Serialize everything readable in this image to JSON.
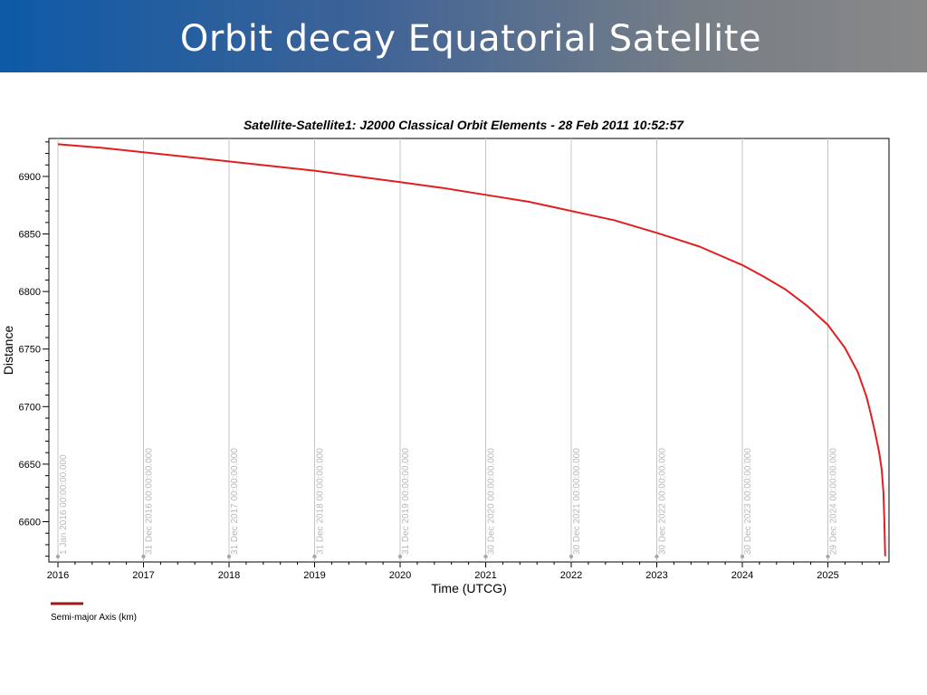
{
  "slide": {
    "title": "Orbit decay Equatorial Satellite",
    "banner_colors": [
      "#0d5aa7",
      "#888888"
    ]
  },
  "chart_data": {
    "type": "line",
    "title": "Satellite-Satellite1:  J2000 Classical Orbit Elements - 28 Feb 2011 10:52:57",
    "xlabel": "Time (UTCG)",
    "ylabel": "Distance",
    "xlim": [
      2016.0,
      2026.2
    ],
    "ylim": [
      6565,
      6933
    ],
    "x_ticks": [
      "2016",
      "2017",
      "2018",
      "2019",
      "2020",
      "2021",
      "2022",
      "2023",
      "2024",
      "2025"
    ],
    "y_ticks": [
      "6600",
      "6650",
      "6700",
      "6750",
      "6800",
      "6850",
      "6900"
    ],
    "y_tick_values": [
      6600,
      6650,
      6700,
      6750,
      6800,
      6850,
      6900
    ],
    "vertical_markers": [
      {
        "x": 2016.0,
        "label": "1 Jan 2016 00:00:00.000"
      },
      {
        "x": 2017.0,
        "label": "31 Dec 2016 00:00:00.000"
      },
      {
        "x": 2018.0,
        "label": "31 Dec 2017 00:00:00.000"
      },
      {
        "x": 2019.0,
        "label": "31 Dec 2018 00:00:00.000"
      },
      {
        "x": 2020.0,
        "label": "31 Dec 2019 00:00:00.000"
      },
      {
        "x": 2021.0,
        "label": "30 Dec 2020 00:00:00.000"
      },
      {
        "x": 2022.0,
        "label": "30 Dec 2021 00:00:00.000"
      },
      {
        "x": 2023.0,
        "label": "30 Dec 2022 00:00:00.000"
      },
      {
        "x": 2024.0,
        "label": "30 Dec 2023 00:00:00.000"
      },
      {
        "x": 2025.0,
        "label": "29 Dec 2024 00:00:00.000"
      }
    ],
    "grid": "vertical",
    "legend_position": "bottom-left",
    "series": [
      {
        "name": "Semi-major Axis (km)",
        "color": "#e02020",
        "legend_color": "#a01818",
        "x": [
          2016.0,
          2016.5,
          2017.0,
          2017.5,
          2018.0,
          2018.5,
          2019.0,
          2019.5,
          2020.0,
          2020.5,
          2021.0,
          2021.5,
          2022.0,
          2022.5,
          2023.0,
          2023.5,
          2024.0,
          2024.25,
          2024.5,
          2024.75,
          2025.0,
          2025.2,
          2025.35,
          2025.45,
          2025.5,
          2025.55,
          2025.6,
          2025.63,
          2025.65,
          2025.66,
          2025.67
        ],
        "y": [
          6928,
          6925,
          6921,
          6917,
          6913,
          6909,
          6905,
          6900,
          6895,
          6890,
          6884,
          6878,
          6870,
          6862,
          6851,
          6839,
          6823,
          6813,
          6802,
          6788,
          6771,
          6751,
          6730,
          6709,
          6694,
          6678,
          6660,
          6645,
          6625,
          6600,
          6570
        ]
      }
    ]
  }
}
